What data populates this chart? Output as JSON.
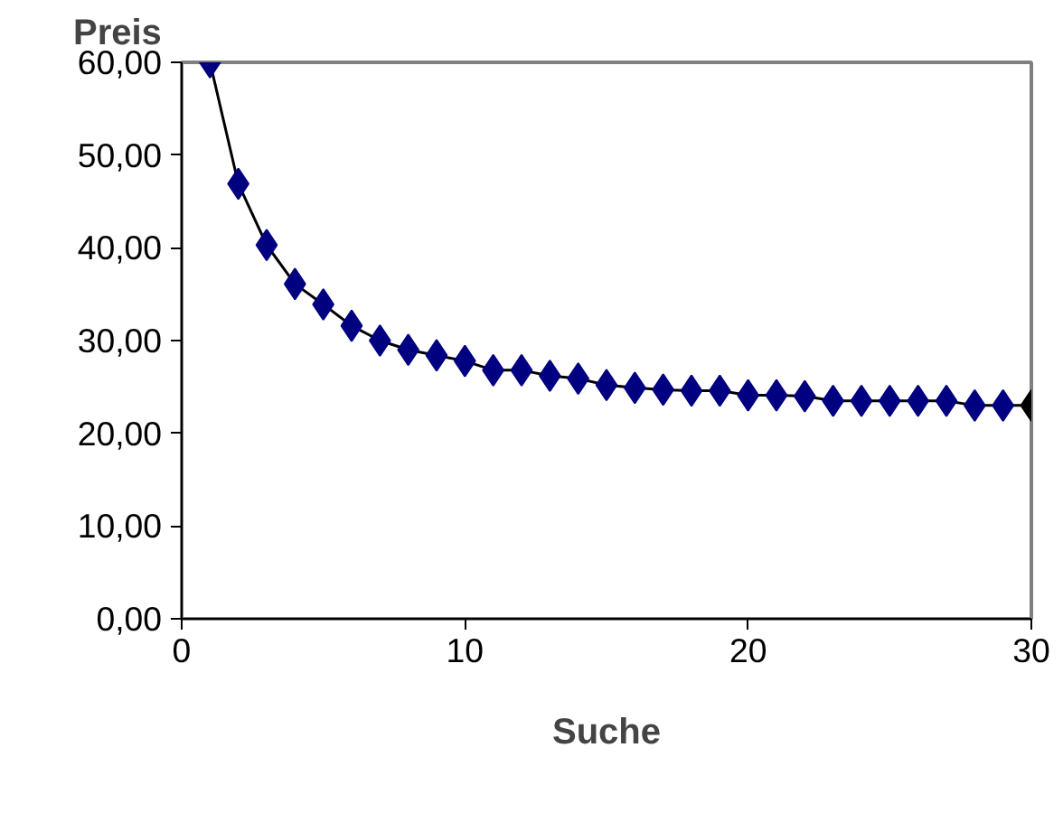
{
  "chart_data": {
    "type": "line",
    "xlabel": "Suche",
    "ylabel": "Preis",
    "x": [
      1,
      2,
      3,
      4,
      5,
      6,
      7,
      8,
      9,
      10,
      11,
      12,
      13,
      14,
      15,
      16,
      17,
      18,
      19,
      20,
      21,
      22,
      23,
      24,
      25,
      26,
      27,
      28,
      29,
      30
    ],
    "series": [
      {
        "color": "#000000",
        "values": [
          60.0,
          46.9,
          40.3,
          36.1,
          33.9,
          31.6,
          30.0,
          29.0,
          28.4,
          27.8,
          26.8,
          26.8,
          26.2,
          25.9,
          25.2,
          24.9,
          24.7,
          24.6,
          24.6,
          24.1,
          24.1,
          24.0,
          23.5,
          23.5,
          23.5,
          23.5,
          23.5,
          23.0,
          23.0,
          23.0
        ],
        "colors": [
          "#000080",
          "#000080",
          "#000080",
          "#000080",
          "#000080",
          "#000080",
          "#000080",
          "#000080",
          "#000080",
          "#000080",
          "#000080",
          "#000080",
          "#000080",
          "#000080",
          "#000080",
          "#000080",
          "#000080",
          "#000080",
          "#000080",
          "#000080",
          "#000080",
          "#000080",
          "#000080",
          "#000080",
          "#000080",
          "#000080",
          "#000080",
          "#000080",
          "#000080",
          "#000000"
        ]
      }
    ],
    "marker": "diamond",
    "line_style": "solid",
    "grid": false,
    "xlim": [
      0,
      30
    ],
    "xticks": [
      0,
      10,
      20,
      30
    ],
    "ylim": [
      0,
      60
    ],
    "yticks": [
      {
        "value": 0,
        "label": "0,00"
      },
      {
        "value": 10,
        "label": "10,00"
      },
      {
        "value": 20,
        "label": "20,00"
      },
      {
        "value": 30,
        "label": "30,00"
      },
      {
        "value": 40,
        "label": "40,00"
      },
      {
        "value": 50,
        "label": "50,00"
      },
      {
        "value": 60,
        "label": "60,00"
      }
    ]
  }
}
